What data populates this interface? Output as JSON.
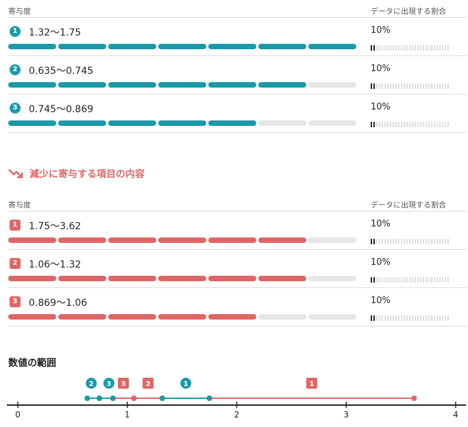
{
  "increase": {
    "header_left": "寄与度",
    "header_right": "データに出現する割合",
    "items": [
      {
        "num": "1",
        "range": "1.32〜1.75",
        "pct": "10%",
        "bar_segments": 7
      },
      {
        "num": "2",
        "range": "0.635〜0.745",
        "pct": "10%",
        "bar_segments": 6
      },
      {
        "num": "3",
        "range": "0.745〜0.869",
        "pct": "10%",
        "bar_segments": 5
      }
    ]
  },
  "decrease": {
    "title": "減少に寄与する項目の内容",
    "header_left": "寄与度",
    "header_right": "データに出現する割合",
    "items": [
      {
        "num": "1",
        "range": "1.75〜3.62",
        "pct": "10%",
        "bar_segments": 6
      },
      {
        "num": "2",
        "range": "1.06〜1.32",
        "pct": "10%",
        "bar_segments": 6
      },
      {
        "num": "3",
        "range": "0.869〜1.06",
        "pct": "10%",
        "bar_segments": 5
      }
    ]
  },
  "bar_total_segments": 7,
  "share_ticks_total": 29,
  "share_ticks_on": 2,
  "value_range": {
    "title": "数値の範囲",
    "axis_ticks": [
      "0",
      "1",
      "2",
      "3",
      "4"
    ],
    "xlim": [
      0,
      4
    ],
    "increase_ranges": [
      {
        "num": "1",
        "from": 1.32,
        "to": 1.75
      },
      {
        "num": "2",
        "from": 0.635,
        "to": 0.745
      },
      {
        "num": "3",
        "from": 0.745,
        "to": 0.869
      }
    ],
    "decrease_ranges": [
      {
        "num": "1",
        "from": 1.75,
        "to": 3.62
      },
      {
        "num": "2",
        "from": 1.06,
        "to": 1.32
      },
      {
        "num": "3",
        "from": 0.869,
        "to": 1.06
      }
    ]
  },
  "colors": {
    "increase": "#1a9aa8",
    "decrease": "#e06666",
    "empty": "#e6e6e6",
    "axis": "#222222"
  }
}
